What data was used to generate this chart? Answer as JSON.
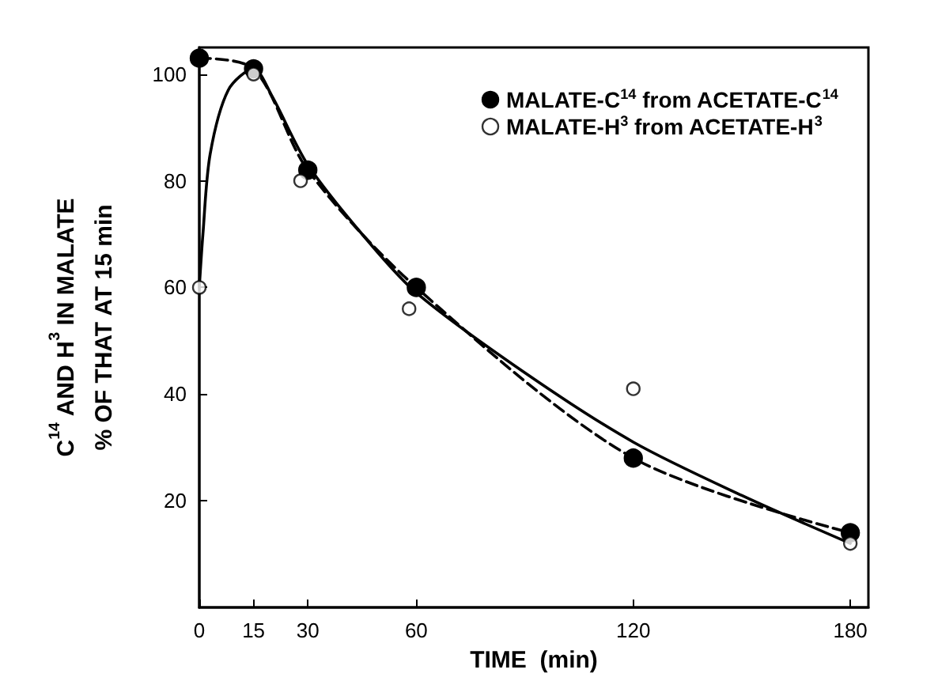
{
  "chart_data": {
    "type": "scatter",
    "xlabel": "TIME  (min)",
    "ylabel": "C$^{14}$ AND H$^{3}$ IN MALATE\n% OF THAT AT 15 min",
    "series": [
      {
        "name": "MALATE-C$^{14}$ from ACETATE-C$^{14}$",
        "type": "line",
        "line_style": "dashed",
        "marker": "circle",
        "color": "#000000",
        "x": [
          0,
          15,
          30,
          60,
          120,
          180
        ],
        "values": [
          103,
          101,
          82,
          60,
          28,
          14
        ]
      },
      {
        "name": "MALATE-H$^{3}$ from ACETATE-H$^{3}$",
        "marker": "circle",
        "color": "#ffffff",
        "x": [
          0,
          15,
          28,
          58,
          120,
          180
        ],
        "values": [
          60,
          100,
          80,
          56,
          41,
          12
        ]
      },
      {
        "type": "line",
        "line_style": "solid",
        "marker": "none",
        "color": "#000000",
        "x": [
          0,
          1,
          3,
          8,
          15,
          20,
          30,
          45,
          60,
          90,
          120,
          150,
          180
        ],
        "values": [
          60,
          70,
          85,
          97,
          101,
          96,
          83,
          70,
          59,
          44,
          31,
          21,
          12
        ]
      }
    ],
    "xlim": [
      0,
      185
    ],
    "xticks": [
      0,
      15,
      30,
      60,
      120,
      180
    ],
    "ylim": [
      0,
      105
    ],
    "yticks": [
      20,
      40,
      60,
      80,
      100
    ],
    "grid": false,
    "legend": "top right"
  }
}
